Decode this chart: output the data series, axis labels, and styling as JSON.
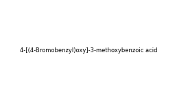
{
  "smiles": "OC(=O)c1ccc(OCc2ccc(Br)cc2)c(OC)c1",
  "title": "",
  "bg_color": "#ffffff",
  "fig_width": 2.58,
  "fig_height": 1.47,
  "dpi": 100,
  "bond_color": "#000000",
  "atom_color": "#000000"
}
